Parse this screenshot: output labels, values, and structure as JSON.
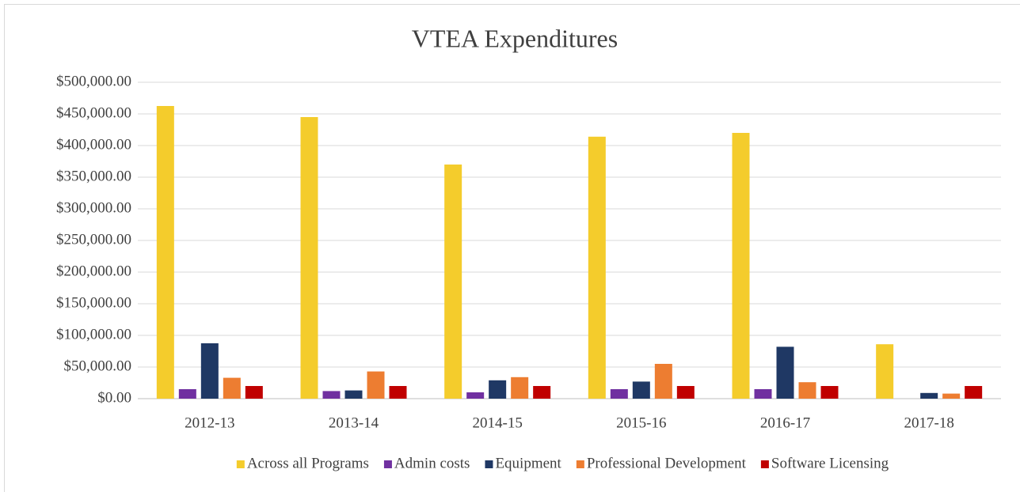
{
  "chart_data": {
    "type": "bar",
    "title": "VTEA Expenditures",
    "categories": [
      "2012-13",
      "2013-14",
      "2014-15",
      "2015-16",
      "2016-17",
      "2017-18"
    ],
    "series": [
      {
        "name": "Across all Programs",
        "color": "#f4cc2c",
        "values": [
          462500,
          445000,
          370000,
          414000,
          420000,
          86000
        ]
      },
      {
        "name": "Admin costs",
        "color": "#7030a0",
        "values": [
          15000,
          12000,
          10000,
          15000,
          15000,
          0
        ]
      },
      {
        "name": "Equipment",
        "color": "#1f3864",
        "values": [
          87500,
          13000,
          29000,
          27000,
          82000,
          9000
        ]
      },
      {
        "name": "Professional Development",
        "color": "#ed7d31",
        "values": [
          33000,
          43000,
          34000,
          55000,
          26000,
          8000
        ]
      },
      {
        "name": "Software Licensing",
        "color": "#c00000",
        "values": [
          20000,
          20000,
          20000,
          20000,
          20000,
          20000
        ]
      }
    ],
    "ylim": [
      0,
      500000
    ],
    "yticks": [
      {
        "value": 0,
        "label": "$0.00"
      },
      {
        "value": 50000,
        "label": "$50,000.00"
      },
      {
        "value": 100000,
        "label": "$100,000.00"
      },
      {
        "value": 150000,
        "label": "$150,000.00"
      },
      {
        "value": 200000,
        "label": "$200,000.00"
      },
      {
        "value": 250000,
        "label": "$250,000.00"
      },
      {
        "value": 300000,
        "label": "$300,000.00"
      },
      {
        "value": 350000,
        "label": "$350,000.00"
      },
      {
        "value": 400000,
        "label": "$400,000.00"
      },
      {
        "value": 450000,
        "label": "$450,000.00"
      },
      {
        "value": 500000,
        "label": "$500,000.00"
      }
    ],
    "grid": true,
    "legend": "bottom"
  }
}
